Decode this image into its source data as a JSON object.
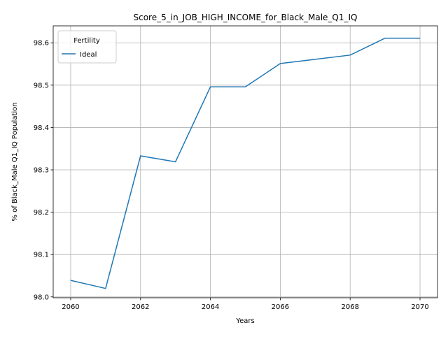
{
  "chart_data": {
    "type": "line",
    "title": "Score_5_in_JOB_HIGH_INCOME_for_Black_Male_Q1_IQ",
    "xlabel": "Years",
    "ylabel": "% of Black_Male Q1_IQ Population",
    "xlim": [
      2059.5,
      2070.5
    ],
    "ylim": [
      97.998,
      98.64
    ],
    "xticks": [
      2060,
      2062,
      2064,
      2066,
      2068,
      2070
    ],
    "yticks": [
      98.0,
      98.1,
      98.2,
      98.3,
      98.4,
      98.5,
      98.6
    ],
    "ytick_labels": [
      "98.0",
      "98.1",
      "98.2",
      "98.3",
      "98.4",
      "98.5",
      "98.6"
    ],
    "grid": true,
    "legend": {
      "title": "Fertility",
      "placement": "top-left"
    },
    "series": [
      {
        "name": "Ideal",
        "color": "#1f77b4",
        "x": [
          2060,
          2061,
          2062,
          2063,
          2064,
          2065,
          2066,
          2067,
          2068,
          2069,
          2070
        ],
        "y": [
          98.039,
          98.02,
          98.333,
          98.319,
          98.496,
          98.496,
          98.551,
          98.561,
          98.571,
          98.611,
          98.611
        ]
      }
    ]
  }
}
